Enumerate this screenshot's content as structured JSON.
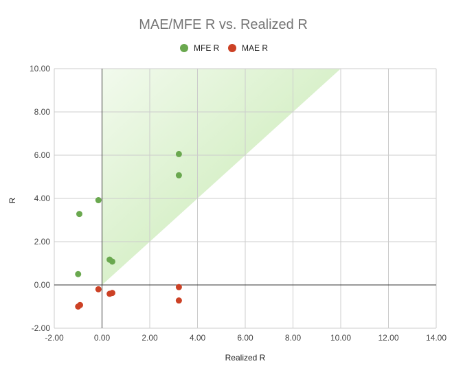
{
  "chart_data": {
    "type": "scatter",
    "title": "MAE/MFE R vs. Realized R",
    "xlabel": "Realized R",
    "ylabel": "R",
    "xlim": [
      -2,
      14
    ],
    "ylim": [
      -2,
      10
    ],
    "x_ticks": [
      "-2.00",
      "0.00",
      "2.00",
      "4.00",
      "6.00",
      "8.00",
      "10.00",
      "12.00",
      "14.00"
    ],
    "y_ticks": [
      "10.00",
      "8.00",
      "6.00",
      "4.00",
      "2.00",
      "0.00",
      "-2.00"
    ],
    "legend_position": "top",
    "grid": true,
    "series": [
      {
        "name": "MFE R",
        "color": "#6aa84f",
        "points": [
          {
            "x": -0.15,
            "y": 3.92
          },
          {
            "x": -0.95,
            "y": 3.28
          },
          {
            "x": -1.0,
            "y": 0.5
          },
          {
            "x": 0.32,
            "y": 1.17
          },
          {
            "x": 0.43,
            "y": 1.08
          },
          {
            "x": 3.22,
            "y": 6.05
          },
          {
            "x": 3.22,
            "y": 5.07
          }
        ]
      },
      {
        "name": "MAE R",
        "color": "#cc4125",
        "points": [
          {
            "x": -0.15,
            "y": -0.2
          },
          {
            "x": -1.0,
            "y": -1.0
          },
          {
            "x": -0.92,
            "y": -0.93
          },
          {
            "x": 0.32,
            "y": -0.41
          },
          {
            "x": 0.43,
            "y": -0.37
          },
          {
            "x": 3.22,
            "y": -0.1
          },
          {
            "x": 3.22,
            "y": -0.72
          }
        ]
      }
    ],
    "shaded_region": {
      "color": "#b6e39b",
      "vertices": [
        {
          "x": 0,
          "y": 0
        },
        {
          "x": 0,
          "y": 10
        },
        {
          "x": 10,
          "y": 10
        }
      ]
    }
  }
}
